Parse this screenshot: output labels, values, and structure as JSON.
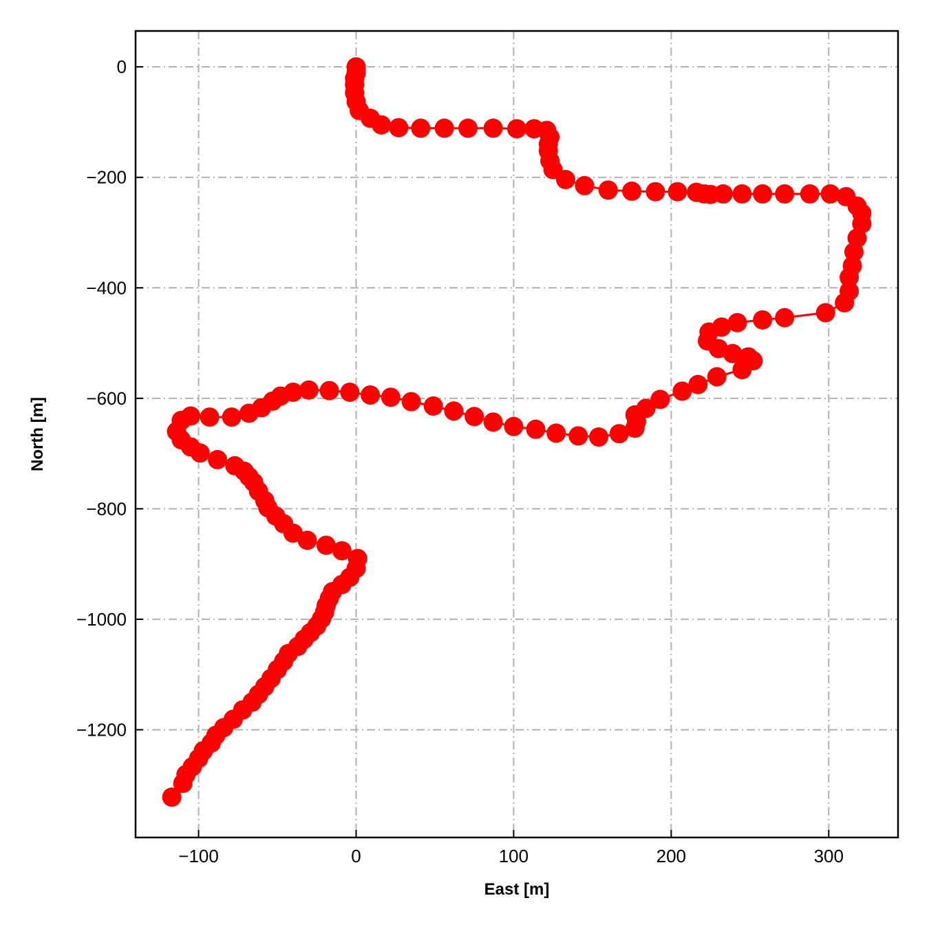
{
  "chart_data": {
    "type": "line",
    "title": "",
    "xlabel": "East [m]",
    "ylabel": "North [m]",
    "xlim": [
      -140,
      344
    ],
    "ylim": [
      -1395,
      65
    ],
    "xticks": [
      -100,
      0,
      100,
      200,
      300
    ],
    "xtick_labels": [
      "−100",
      "0",
      "100",
      "200",
      "300"
    ],
    "yticks": [
      0,
      -200,
      -400,
      -600,
      -800,
      -1000,
      -1200
    ],
    "ytick_labels": [
      "0",
      "−200",
      "−400",
      "−600",
      "−800",
      "−1000",
      "−1200"
    ],
    "grid": true,
    "grid_style": "dash-dot",
    "legend": "none",
    "series": [
      {
        "color": "#ff0000",
        "marker": "circle",
        "x": [
          0,
          0,
          -1,
          -1,
          -1,
          0,
          2,
          9,
          16,
          27,
          41,
          56,
          71,
          87,
          102,
          113,
          121,
          123,
          122,
          122,
          123,
          125,
          133,
          145,
          160,
          175,
          190,
          204,
          216,
          221,
          225,
          233,
          245,
          258,
          272,
          288,
          301,
          311,
          318,
          321,
          321,
          318,
          316,
          315,
          313,
          313,
          310,
          298,
          272,
          258,
          242,
          232,
          224,
          223,
          230,
          239,
          249,
          252,
          245,
          229,
          217,
          207,
          193,
          184,
          177,
          178,
          177,
          167,
          154,
          141,
          127,
          114,
          100,
          87,
          75,
          62,
          49,
          35,
          22,
          9,
          -4,
          -17,
          -30,
          -40,
          -48,
          -53,
          -60,
          -68,
          -79,
          -93,
          -105,
          -111,
          -114,
          -111,
          -105,
          -99,
          -88,
          -77,
          -71,
          -68,
          -65,
          -62,
          -58,
          -56,
          -51,
          -46,
          -40,
          -31,
          -19,
          -9,
          1,
          0,
          -4,
          -9,
          -15,
          -17,
          -19,
          -20,
          -22,
          -25,
          -29,
          -33,
          -37,
          -43,
          -46,
          -50,
          -54,
          -58,
          -62,
          -66,
          -72,
          -78,
          -84,
          -89,
          -92,
          -97,
          -100,
          -104,
          -108,
          -110,
          -117
        ],
        "y": [
          0,
          -11,
          -21,
          -32,
          -47,
          -63,
          -79,
          -93,
          -105,
          -110,
          -111,
          -111,
          -111,
          -111,
          -112,
          -112,
          -115,
          -127,
          -140,
          -152,
          -170,
          -186,
          -204,
          -215,
          -223,
          -225,
          -226,
          -226,
          -227,
          -230,
          -231,
          -230,
          -230,
          -230,
          -230,
          -230,
          -230,
          -235,
          -252,
          -265,
          -284,
          -310,
          -335,
          -360,
          -381,
          -406,
          -427,
          -445,
          -454,
          -458,
          -463,
          -471,
          -480,
          -496,
          -510,
          -519,
          -525,
          -532,
          -548,
          -561,
          -575,
          -587,
          -602,
          -618,
          -630,
          -642,
          -654,
          -664,
          -670,
          -668,
          -663,
          -656,
          -651,
          -643,
          -633,
          -623,
          -614,
          -606,
          -598,
          -594,
          -589,
          -586,
          -585,
          -589,
          -596,
          -605,
          -617,
          -627,
          -634,
          -634,
          -632,
          -640,
          -660,
          -675,
          -688,
          -699,
          -711,
          -722,
          -732,
          -742,
          -752,
          -768,
          -785,
          -798,
          -813,
          -827,
          -844,
          -857,
          -866,
          -876,
          -890,
          -908,
          -924,
          -937,
          -950,
          -962,
          -975,
          -987,
          -999,
          -1012,
          -1024,
          -1036,
          -1049,
          -1062,
          -1076,
          -1091,
          -1107,
          -1122,
          -1136,
          -1150,
          -1164,
          -1181,
          -1196,
          -1210,
          -1224,
          -1238,
          -1252,
          -1267,
          -1281,
          -1297,
          -1322
        ]
      }
    ]
  }
}
